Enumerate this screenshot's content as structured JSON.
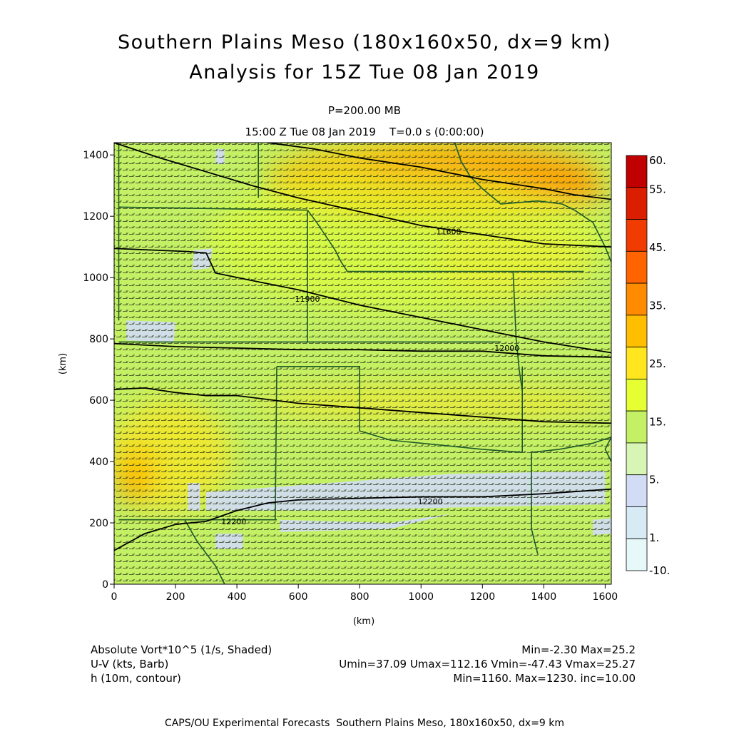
{
  "header": {
    "title_line1": "Southern Plains Meso (180x160x50, dx=9 km)",
    "title_line2": "Analysis for 15Z Tue 08 Jan 2019",
    "level": "P=200.00 MB",
    "time": "15:00 Z Tue 08 Jan 2019    T=0.0 s (0:00:00)"
  },
  "chart_data": {
    "type": "heatmap",
    "xlabel": "(km)",
    "ylabel": "(km)",
    "xlim": [
      0,
      1620
    ],
    "ylim": [
      0,
      1440
    ],
    "x_ticks": [
      "0",
      "200",
      "400",
      "600",
      "800",
      "1000",
      "1200",
      "1400",
      "1600"
    ],
    "y_ticks": [
      "0",
      "200",
      "400",
      "600",
      "800",
      "1000",
      "1200",
      "1400"
    ],
    "colorbar": {
      "labels": [
        "60.",
        "55.",
        "45.",
        "35.",
        "25.",
        "15.",
        "5.",
        "1.",
        "-10."
      ],
      "colors": [
        "#c00000",
        "#dc1e00",
        "#f03c00",
        "#ff6400",
        "#ff8c00",
        "#ffbe00",
        "#ffe61e",
        "#e6ff32",
        "#c3f064",
        "#d7f5b4",
        "#d2dcf5",
        "#d7ebf5",
        "#e6f8f8"
      ]
    },
    "contour_labels": [
      {
        "text": "11600",
        "x": 1090,
        "y": 1150
      },
      {
        "text": "11900",
        "x": 630,
        "y": 930
      },
      {
        "text": "12000",
        "x": 1280,
        "y": 770
      },
      {
        "text": "12200",
        "x": 1030,
        "y": 270
      },
      {
        "text": "12200",
        "x": 390,
        "y": 205
      }
    ],
    "contours": [
      {
        "name": "h1",
        "points": [
          [
            0,
            1440
          ],
          [
            150,
            1390
          ],
          [
            300,
            1345
          ],
          [
            450,
            1300
          ],
          [
            600,
            1260
          ],
          [
            800,
            1215
          ],
          [
            1000,
            1170
          ],
          [
            1200,
            1140
          ],
          [
            1400,
            1110
          ],
          [
            1620,
            1100
          ]
        ]
      },
      {
        "name": "h2",
        "points": [
          [
            0,
            1095
          ],
          [
            120,
            1090
          ],
          [
            240,
            1085
          ],
          [
            300,
            1080
          ],
          [
            330,
            1015
          ],
          [
            450,
            990
          ],
          [
            600,
            960
          ],
          [
            800,
            910
          ],
          [
            1000,
            870
          ],
          [
            1200,
            830
          ],
          [
            1400,
            790
          ],
          [
            1620,
            755
          ]
        ]
      },
      {
        "name": "h3",
        "points": [
          [
            500,
            1440
          ],
          [
            650,
            1420
          ],
          [
            800,
            1390
          ],
          [
            1000,
            1360
          ],
          [
            1200,
            1320
          ],
          [
            1400,
            1290
          ],
          [
            1500,
            1270
          ],
          [
            1620,
            1255
          ]
        ]
      },
      {
        "name": "h4",
        "points": [
          [
            0,
            785
          ],
          [
            200,
            775
          ],
          [
            400,
            770
          ],
          [
            600,
            765
          ],
          [
            800,
            765
          ],
          [
            1000,
            760
          ],
          [
            1200,
            760
          ],
          [
            1400,
            745
          ],
          [
            1620,
            740
          ]
        ]
      },
      {
        "name": "h5",
        "points": [
          [
            0,
            635
          ],
          [
            100,
            640
          ],
          [
            200,
            625
          ],
          [
            300,
            615
          ],
          [
            400,
            615
          ],
          [
            600,
            590
          ],
          [
            800,
            575
          ],
          [
            1000,
            560
          ],
          [
            1200,
            545
          ],
          [
            1400,
            530
          ],
          [
            1620,
            525
          ]
        ]
      },
      {
        "name": "h6",
        "points": [
          [
            0,
            110
          ],
          [
            100,
            165
          ],
          [
            200,
            195
          ],
          [
            300,
            205
          ],
          [
            400,
            240
          ],
          [
            500,
            265
          ],
          [
            600,
            275
          ],
          [
            800,
            280
          ],
          [
            1000,
            285
          ],
          [
            1200,
            285
          ],
          [
            1400,
            295
          ],
          [
            1620,
            310
          ]
        ]
      }
    ],
    "shading": [
      {
        "name": "high-ne",
        "x": 1050,
        "y": 1320,
        "rx": 550,
        "ry": 130,
        "color": "#ffbe00",
        "opacity": 0.8
      },
      {
        "name": "high-ne-core",
        "x": 1180,
        "y": 1340,
        "rx": 380,
        "ry": 75,
        "color": "#ff8c00",
        "opacity": 0.6
      },
      {
        "name": "high-ne-east",
        "x": 1450,
        "y": 1270,
        "rx": 170,
        "ry": 35,
        "color": "#ff6400",
        "opacity": 0.45
      },
      {
        "name": "mid-east",
        "x": 950,
        "y": 1120,
        "rx": 650,
        "ry": 230,
        "color": "#e6ff32",
        "opacity": 0.55
      },
      {
        "name": "band-600",
        "x": 1050,
        "y": 590,
        "rx": 600,
        "ry": 55,
        "color": "#ffe61e",
        "opacity": 0.6
      },
      {
        "name": "sw-yellow",
        "x": 180,
        "y": 420,
        "rx": 200,
        "ry": 180,
        "color": "#ffe61e",
        "opacity": 0.7
      },
      {
        "name": "sw-orange",
        "x": 70,
        "y": 360,
        "rx": 70,
        "ry": 90,
        "color": "#ffbe00",
        "opacity": 0.75
      },
      {
        "name": "sw-core",
        "x": 50,
        "y": 320,
        "rx": 40,
        "ry": 45,
        "color": "#ff8c00",
        "opacity": 0.5
      },
      {
        "name": "upper-east",
        "x": 1300,
        "y": 1050,
        "rx": 250,
        "ry": 120,
        "color": "#ffe61e",
        "opacity": 0.35
      }
    ],
    "low_patches": [
      {
        "name": "blue-band-a",
        "points": [
          [
            300,
            300
          ],
          [
            700,
            330
          ],
          [
            1100,
            360
          ],
          [
            1600,
            370
          ],
          [
            1600,
            260
          ],
          [
            1100,
            250
          ],
          [
            700,
            240
          ],
          [
            300,
            240
          ]
        ]
      },
      {
        "name": "blue-band-b",
        "points": [
          [
            540,
            210
          ],
          [
            900,
            200
          ],
          [
            1100,
            230
          ],
          [
            900,
            180
          ],
          [
            540,
            170
          ]
        ]
      },
      {
        "name": "blue-patch-w",
        "points": [
          [
            40,
            860
          ],
          [
            200,
            855
          ],
          [
            195,
            790
          ],
          [
            40,
            795
          ]
        ]
      },
      {
        "name": "blue-patch-nw",
        "points": [
          [
            330,
            1420
          ],
          [
            360,
            1420
          ],
          [
            360,
            1370
          ],
          [
            330,
            1370
          ]
        ]
      },
      {
        "name": "blue-patch-mid",
        "points": [
          [
            260,
            1090
          ],
          [
            320,
            1095
          ],
          [
            310,
            1030
          ],
          [
            255,
            1025
          ]
        ]
      },
      {
        "name": "blue-patch-sw",
        "points": [
          [
            240,
            330
          ],
          [
            280,
            330
          ],
          [
            280,
            240
          ],
          [
            240,
            240
          ]
        ]
      },
      {
        "name": "blue-patch-s",
        "points": [
          [
            330,
            165
          ],
          [
            420,
            165
          ],
          [
            420,
            115
          ],
          [
            330,
            115
          ]
        ]
      },
      {
        "name": "blue-patch-e",
        "points": [
          [
            1560,
            210
          ],
          [
            1620,
            215
          ],
          [
            1620,
            165
          ],
          [
            1560,
            160
          ]
        ]
      }
    ],
    "boundaries": [
      {
        "name": "co-east",
        "points": [
          [
            15,
            1440
          ],
          [
            15,
            860
          ]
        ]
      },
      {
        "name": "ne-ks",
        "points": [
          [
            15,
            1230
          ],
          [
            630,
            1220
          ]
        ]
      },
      {
        "name": "ne-east",
        "points": [
          [
            630,
            1220
          ],
          [
            660,
            1180
          ],
          [
            680,
            1150
          ],
          [
            700,
            1120
          ],
          [
            720,
            1090
          ],
          [
            740,
            1050
          ],
          [
            760,
            1020
          ]
        ]
      },
      {
        "name": "wy-edge",
        "points": [
          [
            470,
            1440
          ],
          [
            470,
            1260
          ]
        ]
      },
      {
        "name": "ks-ok",
        "points": [
          [
            15,
            790
          ],
          [
            1260,
            790
          ]
        ]
      },
      {
        "name": "ks-east",
        "points": [
          [
            630,
            1220
          ],
          [
            630,
            790
          ]
        ]
      },
      {
        "name": "ia-mo",
        "points": [
          [
            760,
            1020
          ],
          [
            1530,
            1020
          ]
        ]
      },
      {
        "name": "mo-west",
        "points": [
          [
            1300,
            1020
          ],
          [
            1310,
            800
          ],
          [
            1320,
            700
          ],
          [
            1330,
            630
          ]
        ]
      },
      {
        "name": "tx-panhandle",
        "points": [
          [
            530,
            710
          ],
          [
            800,
            710
          ],
          [
            800,
            500
          ]
        ]
      },
      {
        "name": "tx-panhandle-w",
        "points": [
          [
            530,
            710
          ],
          [
            525,
            210
          ]
        ]
      },
      {
        "name": "red-river",
        "points": [
          [
            800,
            500
          ],
          [
            900,
            470
          ],
          [
            1000,
            460
          ],
          [
            1100,
            450
          ],
          [
            1200,
            440
          ],
          [
            1330,
            430
          ]
        ]
      },
      {
        "name": "ok-east",
        "points": [
          [
            1330,
            710
          ],
          [
            1330,
            430
          ]
        ]
      },
      {
        "name": "ar-la",
        "points": [
          [
            1360,
            430
          ],
          [
            1360,
            180
          ],
          [
            1380,
            100
          ]
        ]
      },
      {
        "name": "tx-nm",
        "points": [
          [
            15,
            210
          ],
          [
            530,
            210
          ]
        ]
      },
      {
        "name": "rio-grande",
        "points": [
          [
            230,
            210
          ],
          [
            270,
            140
          ],
          [
            300,
            100
          ],
          [
            330,
            60
          ],
          [
            360,
            0
          ]
        ]
      },
      {
        "name": "ar-ms",
        "points": [
          [
            1360,
            430
          ],
          [
            1450,
            440
          ],
          [
            1560,
            460
          ],
          [
            1620,
            480
          ]
        ]
      },
      {
        "name": "mn-ia",
        "points": [
          [
            1110,
            1440
          ],
          [
            1130,
            1380
          ],
          [
            1160,
            1330
          ],
          [
            1200,
            1290
          ],
          [
            1260,
            1240
          ],
          [
            1380,
            1250
          ],
          [
            1460,
            1240
          ],
          [
            1500,
            1220
          ]
        ]
      },
      {
        "name": "il-edge",
        "points": [
          [
            1500,
            1220
          ],
          [
            1560,
            1180
          ],
          [
            1600,
            1100
          ],
          [
            1620,
            1050
          ]
        ]
      },
      {
        "name": "east-edge",
        "points": [
          [
            1620,
            480
          ],
          [
            1600,
            440
          ],
          [
            1620,
            400
          ]
        ]
      }
    ]
  },
  "footer": {
    "line1_left": "Absolute Vort*10^5 (1/s, Shaded)",
    "line1_right": "Min=-2.30 Max=25.2",
    "line2_left": "U-V (kts, Barb)",
    "line2_right": "Umin=37.09 Umax=112.16 Vmin=-47.43 Vmax=25.27",
    "line3_left": "h (10m, contour)",
    "line3_right": "Min=1160. Max=1230. inc=10.00",
    "credit": "CAPS/OU Experimental Forecasts  Southern Plains Meso, 180x160x50, dx=9 km"
  }
}
